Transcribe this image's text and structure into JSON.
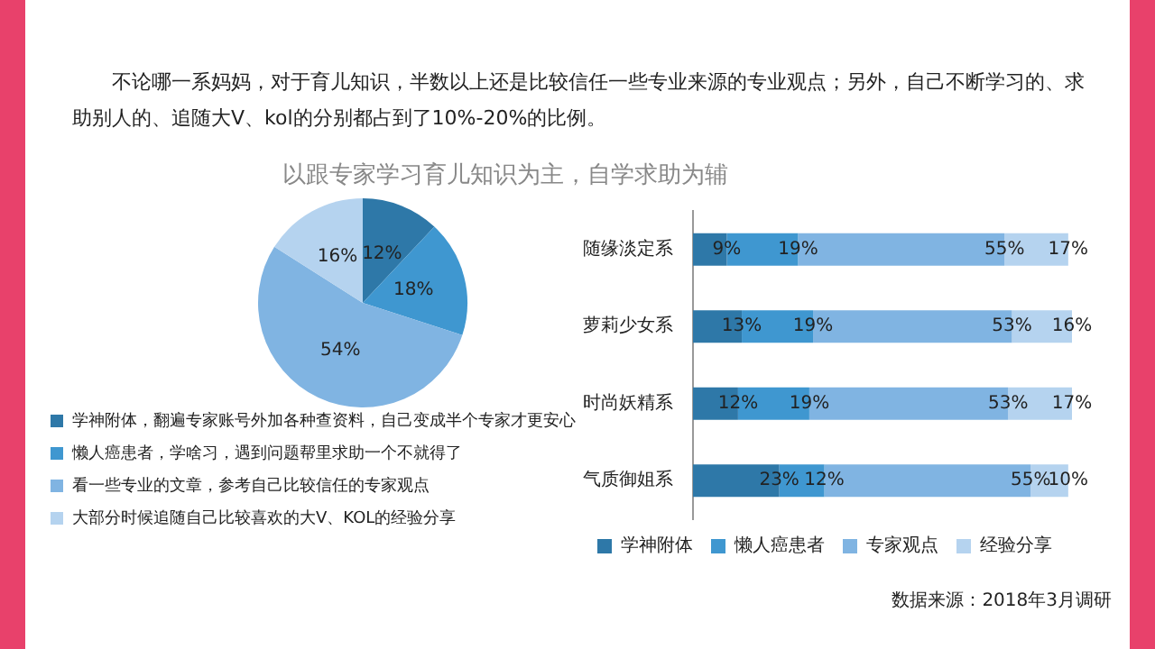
{
  "chart_data": [
    {
      "type": "pie",
      "title": "以跟专家学习育儿知识为主，自学求助为辅",
      "annotations": [
        "不论哪一系妈妈，对于育儿知识，半数以上还是比较信任一些专业来源的专业观点；另外，自己不断学习的、求助别人的、追随大V、kol的分别都占到了10%-20%的比例。"
      ],
      "categories": [
        "学神附体，翻遍专家账号外加各种查资料，自己变成半个专家才更安心",
        "懒人癌患者，学啥习，遇到问题帮里求助一个不就得了",
        "看一些专业的文章，参考自己比较信任的专家观点",
        "大部分时候追随自己比较喜欢的大V、KOL的经验分享"
      ],
      "values": [
        12,
        18,
        54,
        16
      ],
      "value_labels": [
        "12%",
        "18%",
        "54%",
        "16%"
      ],
      "colors": [
        "#2e78a8",
        "#3f97d0",
        "#80b4e2",
        "#b5d3ef"
      ],
      "legend": "bottom"
    },
    {
      "type": "bar",
      "orientation": "horizontal",
      "stacked": true,
      "legend": "bottom",
      "annotations": [
        "数据来源：2018年3月调研"
      ],
      "categories": [
        "随缘淡定系",
        "萝莉少女系",
        "时尚妖精系",
        "气质御姐系"
      ],
      "series": [
        {
          "name": "学神附体",
          "color": "#2e78a8",
          "values": [
            9,
            13,
            12,
            23
          ],
          "value_labels": [
            "9%",
            "13%",
            "12%",
            "23%"
          ]
        },
        {
          "name": "懒人癌患者",
          "color": "#3f97d0",
          "values": [
            19,
            19,
            19,
            12
          ],
          "value_labels": [
            "19%",
            "19%",
            "19%",
            "12%"
          ]
        },
        {
          "name": "专家观点",
          "color": "#80b4e2",
          "values": [
            55,
            53,
            53,
            55
          ],
          "value_labels": [
            "55%",
            "53%",
            "53%",
            "55%"
          ]
        },
        {
          "name": "经验分享",
          "color": "#b5d3ef",
          "values": [
            17,
            16,
            17,
            10
          ],
          "value_labels": [
            "17%",
            "16%",
            "17%",
            "10%"
          ]
        }
      ]
    }
  ]
}
